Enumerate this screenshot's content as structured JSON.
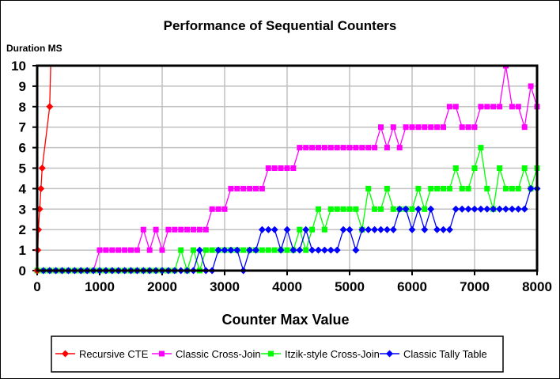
{
  "chart_data": {
    "type": "line",
    "title": "Performance of Sequential Counters",
    "xlabel": "Counter Max Value",
    "ylabel": "Duration MS",
    "xlim": [
      0,
      8000
    ],
    "ylim": [
      0,
      10
    ],
    "xticks": [
      "0",
      "1000",
      "2000",
      "3000",
      "4000",
      "5000",
      "6000",
      "7000",
      "8000"
    ],
    "yticks": [
      "0",
      "1",
      "2",
      "3",
      "4",
      "5",
      "6",
      "7",
      "8",
      "9",
      "10"
    ],
    "grid": true,
    "legend_position": "bottom",
    "series": [
      {
        "name": "Recursive CTE",
        "color": "#ff0000",
        "marker": "diamond",
        "x": [
          0,
          10,
          20,
          40,
          60,
          80,
          200,
          300
        ],
        "y": [
          0,
          1,
          2,
          3,
          4,
          5,
          8,
          20
        ]
      },
      {
        "name": "Classic Cross-Join",
        "color": "#ff00ff",
        "marker": "square",
        "x_start": 0,
        "x_step": 100,
        "y": [
          0,
          0,
          0,
          0,
          0,
          0,
          0,
          0,
          0,
          0,
          1,
          1,
          1,
          1,
          1,
          1,
          1,
          2,
          1,
          2,
          1,
          2,
          2,
          2,
          2,
          2,
          2,
          2,
          3,
          3,
          3,
          4,
          4,
          4,
          4,
          4,
          4,
          5,
          5,
          5,
          5,
          5,
          6,
          6,
          6,
          6,
          6,
          6,
          6,
          6,
          6,
          6,
          6,
          6,
          6,
          7,
          6,
          7,
          6,
          7,
          7,
          7,
          7,
          7,
          7,
          7,
          8,
          8,
          7,
          7,
          7,
          8,
          8,
          8,
          8,
          10,
          8,
          8,
          7,
          9,
          8
        ]
      },
      {
        "name": "Itzik-style Cross-Join",
        "color": "#00ff00",
        "marker": "square",
        "x_start": 0,
        "x_step": 100,
        "y": [
          0,
          0,
          0,
          0,
          0,
          0,
          0,
          0,
          0,
          0,
          0,
          0,
          0,
          0,
          0,
          0,
          0,
          0,
          0,
          0,
          0,
          0,
          0,
          1,
          0,
          1,
          0,
          1,
          1,
          1,
          1,
          1,
          1,
          1,
          1,
          1,
          1,
          1,
          1,
          1,
          1,
          1,
          2,
          1,
          2,
          3,
          2,
          3,
          3,
          3,
          3,
          3,
          2,
          4,
          3,
          3,
          4,
          3,
          3,
          3,
          3,
          4,
          3,
          4,
          4,
          4,
          4,
          5,
          4,
          4,
          5,
          6,
          4,
          3,
          5,
          4,
          4,
          4,
          5,
          4,
          5
        ]
      },
      {
        "name": "Classic Tally Table",
        "color": "#0000ff",
        "marker": "diamond",
        "x_start": 0,
        "x_step": 100,
        "y": [
          0,
          0,
          0,
          0,
          0,
          0,
          0,
          0,
          0,
          0,
          0,
          0,
          0,
          0,
          0,
          0,
          0,
          0,
          0,
          0,
          0,
          0,
          0,
          0,
          0,
          0,
          1,
          0,
          0,
          1,
          1,
          1,
          1,
          0,
          1,
          1,
          2,
          2,
          2,
          1,
          2,
          1,
          1,
          2,
          1,
          1,
          1,
          1,
          1,
          2,
          2,
          1,
          2,
          2,
          2,
          2,
          2,
          2,
          3,
          3,
          2,
          3,
          2,
          3,
          2,
          2,
          2,
          3,
          3,
          3,
          3,
          3,
          3,
          3,
          3,
          3,
          3,
          3,
          3,
          4,
          4
        ]
      }
    ]
  }
}
